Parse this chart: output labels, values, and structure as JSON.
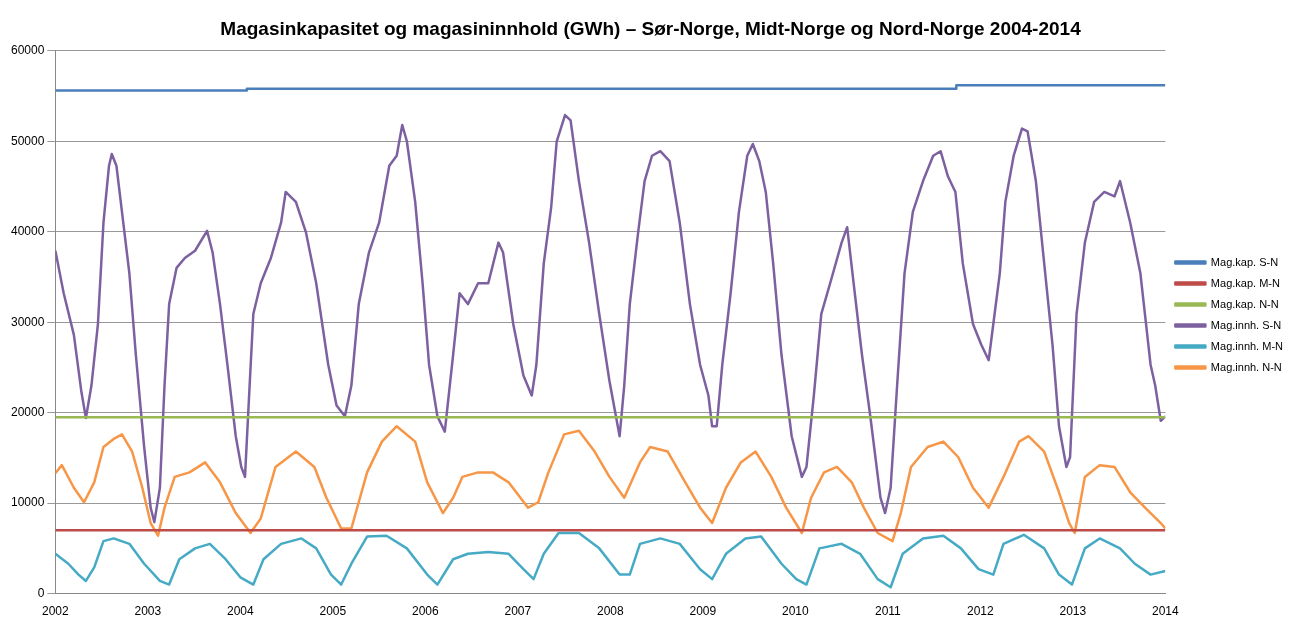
{
  "chart_data": {
    "type": "line",
    "title": "Magasinkapasitet og magasininnhold (GWh) – Sør-Norge, Midt-Norge og Nord-Norge 2004-2014",
    "xlim": [
      2002,
      2014
    ],
    "xticks": [
      2002,
      2003,
      2004,
      2005,
      2006,
      2007,
      2008,
      2009,
      2010,
      2011,
      2012,
      2013,
      2014
    ],
    "ylim": [
      0,
      60000
    ],
    "yticks": [
      0,
      10000,
      20000,
      30000,
      40000,
      50000,
      60000
    ],
    "grid": "y",
    "legend": "right",
    "marker": "none",
    "series": [
      {
        "name": "Mag.kap. S-N",
        "color": "#4a7ebb",
        "type": "step",
        "x": [
          2002,
          2004.07,
          2011.74,
          2014
        ],
        "values": [
          55600,
          55800,
          56200,
          56200
        ]
      },
      {
        "name": "Mag.kap. M-N",
        "color": "#be4b48",
        "x": [
          2002,
          2014
        ],
        "values": [
          7000,
          7000
        ]
      },
      {
        "name": "Mag.kap. N-N",
        "color": "#98b954",
        "x": [
          2002,
          2014
        ],
        "values": [
          19500,
          19500
        ]
      },
      {
        "name": "Mag.innh. S-N",
        "color": "#7d60a0",
        "x": [
          2002,
          2002.09,
          2002.2,
          2002.28,
          2002.33,
          2002.39,
          2002.46,
          2002.52,
          2002.58,
          2002.61,
          2002.66,
          2002.72,
          2002.8,
          2002.87,
          2002.96,
          2003.03,
          2003.07,
          2003.13,
          2003.18,
          2003.23,
          2003.31,
          2003.4,
          2003.51,
          2003.64,
          2003.7,
          2003.78,
          2003.86,
          2003.95,
          2004.01,
          2004.05,
          2004.1,
          2004.14,
          2004.22,
          2004.33,
          2004.44,
          2004.49,
          2004.6,
          2004.71,
          2004.82,
          2004.95,
          2005.04,
          2005.13,
          2005.2,
          2005.28,
          2005.39,
          2005.5,
          2005.61,
          2005.69,
          2005.75,
          2005.8,
          2005.89,
          2005.97,
          2006.04,
          2006.13,
          2006.21,
          2006.3,
          2006.37,
          2006.46,
          2006.57,
          2006.68,
          2006.79,
          2006.84,
          2006.95,
          2007.06,
          2007.15,
          2007.2,
          2007.28,
          2007.36,
          2007.42,
          2007.51,
          2007.57,
          2007.66,
          2007.77,
          2007.88,
          2007.99,
          2008.1,
          2008.15,
          2008.21,
          2008.3,
          2008.37,
          2008.45,
          2008.54,
          2008.64,
          2008.75,
          2008.86,
          2008.97,
          2009.06,
          2009.1,
          2009.15,
          2009.21,
          2009.3,
          2009.39,
          2009.48,
          2009.54,
          2009.61,
          2009.68,
          2009.76,
          2009.85,
          2009.96,
          2010.07,
          2010.12,
          2010.2,
          2010.28,
          2010.39,
          2010.5,
          2010.56,
          2010.63,
          2010.72,
          2010.81,
          2010.92,
          2010.97,
          2011.03,
          2011.1,
          2011.18,
          2011.27,
          2011.38,
          2011.49,
          2011.57,
          2011.65,
          2011.73,
          2011.81,
          2011.92,
          2012.01,
          2012.09,
          2012.14,
          2012.21,
          2012.27,
          2012.36,
          2012.45,
          2012.51,
          2012.6,
          2012.69,
          2012.78,
          2012.85,
          2012.93,
          2012.97,
          2013.04,
          2013.13,
          2013.23,
          2013.34,
          2013.45,
          2013.51,
          2013.62,
          2013.73,
          2013.84,
          2013.89,
          2013.95,
          2014
        ],
        "values": [
          37900,
          33200,
          28600,
          22400,
          19400,
          23000,
          29800,
          41000,
          47300,
          48600,
          47300,
          42200,
          35400,
          26400,
          16200,
          9500,
          7900,
          11700,
          23000,
          32000,
          36000,
          37100,
          37900,
          40100,
          37700,
          32000,
          25300,
          17400,
          14000,
          12900,
          23000,
          30900,
          34300,
          37100,
          41000,
          44400,
          43300,
          39900,
          34300,
          25300,
          20800,
          19600,
          23000,
          32000,
          37700,
          41000,
          47300,
          48400,
          51800,
          50000,
          43300,
          34300,
          25300,
          19600,
          17900,
          26400,
          33200,
          32000,
          34300,
          34300,
          38800,
          37700,
          29800,
          24100,
          21900,
          25300,
          36500,
          42700,
          50000,
          52900,
          52300,
          45600,
          38800,
          30900,
          23500,
          17400,
          23000,
          32000,
          39900,
          45600,
          48400,
          48900,
          47800,
          41000,
          32000,
          25300,
          21900,
          18500,
          18500,
          25300,
          33200,
          42200,
          48400,
          49700,
          47800,
          44400,
          36500,
          26400,
          17400,
          12900,
          14000,
          21900,
          30900,
          34800,
          38800,
          40500,
          34300,
          26400,
          19600,
          10600,
          8900,
          11700,
          23000,
          35400,
          42200,
          45600,
          48400,
          48900,
          46100,
          44400,
          36500,
          29800,
          27500,
          25800,
          29800,
          35400,
          43300,
          48400,
          51400,
          51100,
          45600,
          36500,
          27500,
          18500,
          14000,
          15100,
          30900,
          38800,
          43300,
          44400,
          43900,
          45600,
          41000,
          35400,
          25300,
          23000,
          19100,
          19600
        ]
      },
      {
        "name": "Mag.innh. M-N",
        "color": "#46aac5",
        "x": [
          2002,
          2002.14,
          2002.25,
          2002.33,
          2002.42,
          2002.52,
          2002.63,
          2002.8,
          2002.96,
          2003.13,
          2003.23,
          2003.34,
          2003.51,
          2003.67,
          2003.84,
          2004,
          2004.14,
          2004.25,
          2004.44,
          2004.66,
          2004.82,
          2004.98,
          2005.09,
          2005.2,
          2005.37,
          2005.58,
          2005.8,
          2006.02,
          2006.13,
          2006.3,
          2006.46,
          2006.68,
          2006.9,
          2007.06,
          2007.17,
          2007.28,
          2007.44,
          2007.66,
          2007.88,
          2008.1,
          2008.21,
          2008.32,
          2008.54,
          2008.75,
          2008.97,
          2009.1,
          2009.25,
          2009.46,
          2009.63,
          2009.85,
          2010.01,
          2010.12,
          2010.26,
          2010.5,
          2010.7,
          2010.89,
          2011.03,
          2011.16,
          2011.38,
          2011.6,
          2011.79,
          2011.98,
          2012.14,
          2012.25,
          2012.47,
          2012.69,
          2012.85,
          2012.99,
          2013.13,
          2013.29,
          2013.51,
          2013.67,
          2013.84,
          2014
        ],
        "values": [
          4400,
          3300,
          2100,
          1400,
          2900,
          5800,
          6100,
          5500,
          3300,
          1400,
          1000,
          3800,
          5000,
          5500,
          3800,
          1800,
          1000,
          3800,
          5500,
          6100,
          5000,
          2100,
          1000,
          3300,
          6300,
          6400,
          5000,
          2100,
          1000,
          3800,
          4400,
          4600,
          4400,
          2700,
          1600,
          4400,
          6700,
          6700,
          5000,
          2100,
          2100,
          5500,
          6100,
          5500,
          2700,
          1600,
          4400,
          6100,
          6300,
          3300,
          1600,
          1000,
          5000,
          5500,
          4400,
          1600,
          700,
          4400,
          6100,
          6400,
          5000,
          2700,
          2100,
          5500,
          6500,
          5000,
          2100,
          1000,
          5000,
          6100,
          5000,
          3300,
          2100,
          2500
        ]
      },
      {
        "name": "Mag.innh. N-N",
        "color": "#f79646",
        "x": [
          2002,
          2002.07,
          2002.2,
          2002.31,
          2002.42,
          2002.52,
          2002.63,
          2002.72,
          2002.83,
          2002.94,
          2003.03,
          2003.11,
          2003.18,
          2003.29,
          2003.45,
          2003.62,
          2003.78,
          2003.95,
          2004.11,
          2004.22,
          2004.38,
          2004.6,
          2004.8,
          2004.93,
          2005.09,
          2005.2,
          2005.37,
          2005.53,
          2005.69,
          2005.89,
          2006.02,
          2006.19,
          2006.3,
          2006.4,
          2006.57,
          2006.73,
          2006.9,
          2007.11,
          2007.22,
          2007.33,
          2007.5,
          2007.66,
          2007.83,
          2007.99,
          2008.15,
          2008.32,
          2008.43,
          2008.62,
          2008.81,
          2008.97,
          2009.1,
          2009.25,
          2009.41,
          2009.57,
          2009.74,
          2009.9,
          2010.07,
          2010.17,
          2010.31,
          2010.45,
          2010.61,
          2010.74,
          2010.89,
          2011.05,
          2011.14,
          2011.25,
          2011.43,
          2011.6,
          2011.76,
          2011.92,
          2012.09,
          2012.25,
          2012.42,
          2012.52,
          2012.69,
          2012.85,
          2012.96,
          2013.02,
          2013.13,
          2013.29,
          2013.45,
          2013.62,
          2013.78,
          2013.95,
          2014
        ],
        "values": [
          13300,
          14200,
          11700,
          10100,
          12300,
          16200,
          17100,
          17600,
          15700,
          11700,
          7800,
          6400,
          9500,
          12900,
          13400,
          14500,
          12300,
          8900,
          6700,
          8300,
          14000,
          15700,
          14000,
          10600,
          7200,
          7200,
          13400,
          16800,
          18500,
          16800,
          12300,
          8900,
          10600,
          12900,
          13400,
          13400,
          12300,
          9500,
          10100,
          13400,
          17600,
          18000,
          15700,
          12900,
          10600,
          14500,
          16200,
          15700,
          12300,
          9500,
          7800,
          11700,
          14500,
          15700,
          12900,
          9500,
          6700,
          10600,
          13400,
          14000,
          12300,
          9500,
          6700,
          5800,
          8900,
          14000,
          16200,
          16800,
          15100,
          11700,
          9500,
          12900,
          16800,
          17400,
          15700,
          11200,
          7800,
          6700,
          12900,
          14200,
          14000,
          11200,
          9500,
          7800,
          7200
        ]
      }
    ]
  }
}
